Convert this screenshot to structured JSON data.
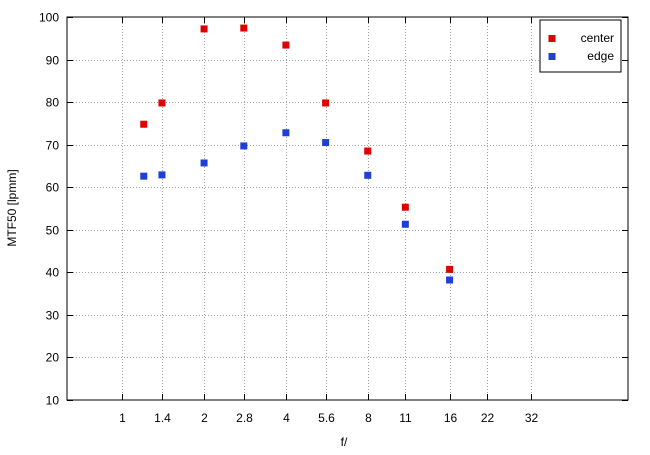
{
  "chart_data": {
    "type": "scatter",
    "xlabel": "f/",
    "ylabel": "MTF50 [lpmm]",
    "x_categories": [
      "1",
      "1.4",
      "2",
      "2.8",
      "4",
      "5.6",
      "8",
      "11",
      "16",
      "22",
      "32"
    ],
    "ylim": [
      10,
      100
    ],
    "y_ticks": [
      10,
      20,
      30,
      40,
      50,
      60,
      70,
      80,
      90,
      100
    ],
    "grid": true,
    "legend_position": "top-right",
    "series": [
      {
        "name": "center",
        "color": "#e00000",
        "points": [
          {
            "x": 1.2,
            "y": 74.8
          },
          {
            "x": 1.4,
            "y": 79.8
          },
          {
            "x": 2,
            "y": 97.2
          },
          {
            "x": 2.8,
            "y": 97.4
          },
          {
            "x": 4,
            "y": 93.4
          },
          {
            "x": 5.6,
            "y": 79.8
          },
          {
            "x": 8,
            "y": 68.5
          },
          {
            "x": 11,
            "y": 55.3
          },
          {
            "x": 16,
            "y": 40.7
          }
        ]
      },
      {
        "name": "edge",
        "color": "#1f3fd6",
        "points": [
          {
            "x": 1.2,
            "y": 62.6
          },
          {
            "x": 1.4,
            "y": 62.9
          },
          {
            "x": 2,
            "y": 65.7
          },
          {
            "x": 2.8,
            "y": 69.7
          },
          {
            "x": 4,
            "y": 72.8
          },
          {
            "x": 5.6,
            "y": 70.5
          },
          {
            "x": 8,
            "y": 62.8
          },
          {
            "x": 11,
            "y": 51.3
          },
          {
            "x": 16,
            "y": 38.2
          }
        ]
      }
    ]
  }
}
